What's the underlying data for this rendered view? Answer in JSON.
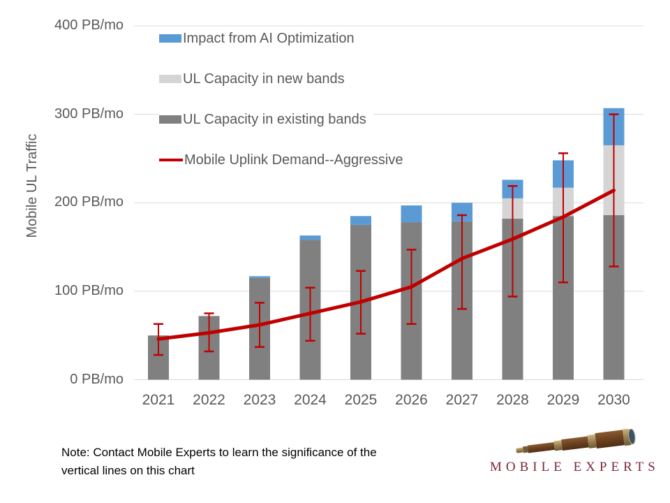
{
  "chart_data": {
    "type": "bar",
    "subtype": "stacked-bars-with-line-and-error-bars",
    "title": "",
    "y_axis_title": "Mobile UL Traffic",
    "xlabel": "",
    "ylabel": "Mobile UL Traffic",
    "ylim": [
      0,
      400
    ],
    "grid": "horizontal",
    "grid_color": "#D9D9D9",
    "axis_text_color": "#595959",
    "y_ticks": [
      {
        "value": 0,
        "label": "0 PB/mo"
      },
      {
        "value": 100,
        "label": "100 PB/mo"
      },
      {
        "value": 200,
        "label": "200 PB/mo"
      },
      {
        "value": 300,
        "label": "300 PB/mo"
      },
      {
        "value": 400,
        "label": "400 PB/mo"
      }
    ],
    "categories": [
      "2021",
      "2022",
      "2023",
      "2024",
      "2025",
      "2026",
      "2027",
      "2028",
      "2029",
      "2030"
    ],
    "series": [
      {
        "name": "UL Capacity in existing bands",
        "type": "bar",
        "color": "#808080",
        "values": [
          50,
          72,
          115,
          158,
          175,
          178,
          179,
          182,
          185,
          186
        ]
      },
      {
        "name": "UL Capacity in new bands",
        "type": "bar",
        "color": "#D5D5D5",
        "values": [
          0,
          0,
          0,
          0,
          0,
          0,
          0,
          23,
          32,
          79
        ]
      },
      {
        "name": "Impact from AI Optimization",
        "type": "bar",
        "color": "#5B9BD5",
        "values": [
          0,
          0,
          2,
          5,
          10,
          19,
          21,
          21,
          31,
          42
        ]
      },
      {
        "name": "Mobile Uplink Demand--Aggressive",
        "type": "line",
        "color": "#C00000",
        "values": [
          46,
          53,
          62,
          75,
          88,
          105,
          137,
          159,
          184,
          214
        ]
      }
    ],
    "error_bars": {
      "color": "#C00000",
      "low": [
        28,
        32,
        37,
        44,
        52,
        63,
        80,
        94,
        110,
        128
      ],
      "high": [
        63,
        75,
        87,
        104,
        123,
        147,
        186,
        219,
        256,
        300
      ]
    },
    "legend_position": "inside-top-left"
  },
  "legend": {
    "items": [
      {
        "label": "Impact from AI Optimization",
        "swatch": "rect",
        "color": "#5B9BD5"
      },
      {
        "label": "UL Capacity in new bands",
        "swatch": "rect",
        "color": "#D5D5D5"
      },
      {
        "label": "UL Capacity in existing bands",
        "swatch": "rect",
        "color": "#808080"
      },
      {
        "label": "Mobile Uplink Demand--Aggressive",
        "swatch": "line",
        "color": "#C00000"
      }
    ]
  },
  "note": {
    "line1": "Note:  Contact Mobile Experts to learn the significance of the",
    "line2": "vertical lines on this chart"
  },
  "logo": {
    "text": "MOBILE EXPERTS",
    "color": "#7A2638",
    "icon": "telescope-icon"
  }
}
